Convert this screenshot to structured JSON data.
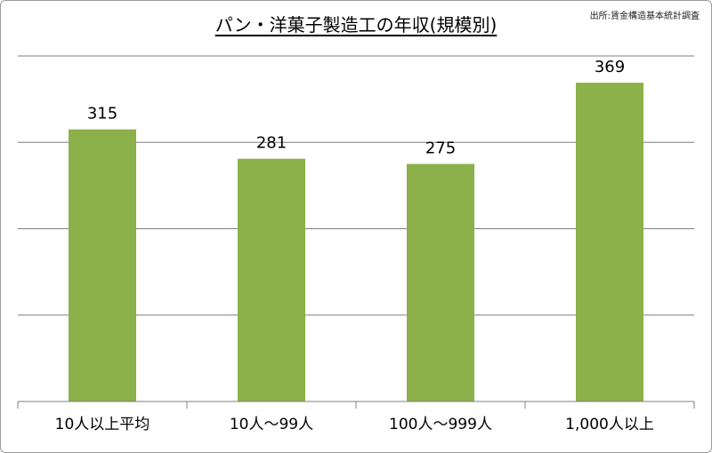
{
  "title": "パン・洋菓子製造工の年収(規模別)",
  "source": "出所:賃金構造基本統計調査",
  "colors": {
    "bar": "#8cb04a",
    "grid": "#7f7f7f",
    "axis": "#7f7f7f"
  },
  "chart_data": {
    "type": "bar",
    "title": "パン・洋菓子製造工の年収(規模別)",
    "categories": [
      "10人以上平均",
      "10人〜99人",
      "100人〜999人",
      "1,000人以上"
    ],
    "values": [
      315,
      281,
      275,
      369
    ],
    "data_labels": [
      "315",
      "281",
      "275",
      "369"
    ],
    "xlabel": "",
    "ylabel": "",
    "ylim": [
      0,
      400
    ],
    "gridlines": true,
    "y_tick_labels_visible": false,
    "legend": "none"
  }
}
